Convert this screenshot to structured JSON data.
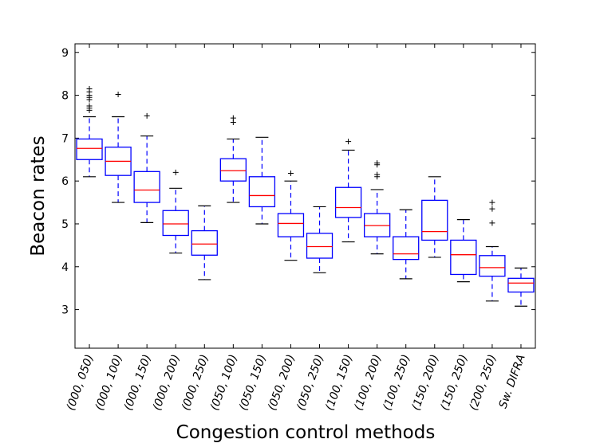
{
  "chart_data": {
    "type": "boxplot",
    "title": "",
    "xlabel": "Congestion control methods",
    "ylabel": "Beacon rates",
    "ylim": [
      2.1,
      9.2
    ],
    "yticks": [
      3,
      4,
      5,
      6,
      7,
      8,
      9
    ],
    "categories": [
      "(000, 050)",
      "(000, 100)",
      "(000, 150)",
      "(000, 200)",
      "(000, 250)",
      "(050, 100)",
      "(050, 150)",
      "(050, 200)",
      "(050, 250)",
      "(100, 150)",
      "(100, 200)",
      "(100, 250)",
      "(150, 200)",
      "(150, 250)",
      "(200, 250)",
      "Sw. DIFRA"
    ],
    "boxes": [
      {
        "whisker_low": 6.1,
        "q1": 6.5,
        "median": 6.76,
        "q3": 6.98,
        "whisker_high": 7.5,
        "outliers": [
          7.65,
          7.7,
          7.75,
          7.9,
          7.95,
          8.0,
          8.08,
          8.15
        ]
      },
      {
        "whisker_low": 5.5,
        "q1": 6.13,
        "median": 6.46,
        "q3": 6.79,
        "whisker_high": 7.5,
        "outliers": [
          8.02
        ]
      },
      {
        "whisker_low": 5.03,
        "q1": 5.5,
        "median": 5.79,
        "q3": 6.22,
        "whisker_high": 7.05,
        "outliers": [
          7.52
        ]
      },
      {
        "whisker_low": 4.32,
        "q1": 4.73,
        "median": 5.0,
        "q3": 5.31,
        "whisker_high": 5.83,
        "outliers": [
          6.2
        ]
      },
      {
        "whisker_low": 3.7,
        "q1": 4.27,
        "median": 4.53,
        "q3": 4.84,
        "whisker_high": 5.42,
        "outliers": []
      },
      {
        "whisker_low": 5.5,
        "q1": 6.0,
        "median": 6.24,
        "q3": 6.52,
        "whisker_high": 6.98,
        "outliers": [
          7.37,
          7.47
        ]
      },
      {
        "whisker_low": 5.0,
        "q1": 5.4,
        "median": 5.66,
        "q3": 6.1,
        "whisker_high": 7.02,
        "outliers": []
      },
      {
        "whisker_low": 4.15,
        "q1": 4.7,
        "median": 5.01,
        "q3": 5.24,
        "whisker_high": 6.0,
        "outliers": [
          6.18
        ]
      },
      {
        "whisker_low": 3.86,
        "q1": 4.2,
        "median": 4.47,
        "q3": 4.78,
        "whisker_high": 5.4,
        "outliers": []
      },
      {
        "whisker_low": 4.58,
        "q1": 5.15,
        "median": 5.38,
        "q3": 5.85,
        "whisker_high": 6.72,
        "outliers": [
          6.92
        ]
      },
      {
        "whisker_low": 4.3,
        "q1": 4.7,
        "median": 4.96,
        "q3": 5.24,
        "whisker_high": 5.8,
        "outliers": [
          6.1,
          6.15,
          6.38,
          6.42
        ]
      },
      {
        "whisker_low": 3.72,
        "q1": 4.17,
        "median": 4.3,
        "q3": 4.7,
        "whisker_high": 5.33,
        "outliers": []
      },
      {
        "whisker_low": 4.22,
        "q1": 4.62,
        "median": 4.82,
        "q3": 5.55,
        "whisker_high": 6.1,
        "outliers": []
      },
      {
        "whisker_low": 3.65,
        "q1": 3.82,
        "median": 4.28,
        "q3": 4.62,
        "whisker_high": 5.1,
        "outliers": []
      },
      {
        "whisker_low": 3.2,
        "q1": 3.78,
        "median": 3.98,
        "q3": 4.26,
        "whisker_high": 4.47,
        "outliers": [
          5.02,
          5.35,
          5.5
        ]
      },
      {
        "whisker_low": 3.08,
        "q1": 3.41,
        "median": 3.62,
        "q3": 3.73,
        "whisker_high": 3.97,
        "outliers": []
      }
    ],
    "colors": {
      "box": "#0000ff",
      "median": "#ff0000",
      "whisker": "#0000ff",
      "cap": "#000000",
      "outlier": "#000000",
      "axis": "#000000"
    }
  }
}
